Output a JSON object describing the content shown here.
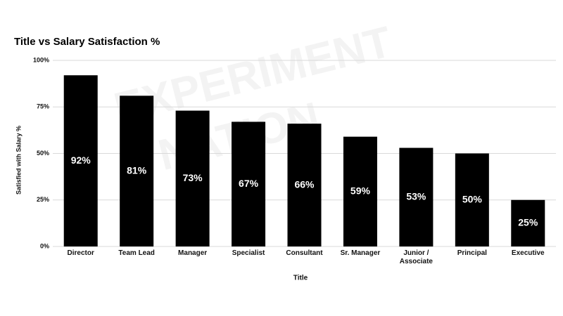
{
  "chart_data": {
    "type": "bar",
    "title": "Title vs Salary Satisfaction %",
    "watermark": [
      "EXPERIMENT",
      "NATION"
    ],
    "x_label": "Title",
    "y_label": "Satisfied with Salary %",
    "categories": [
      "Director",
      "Team Lead",
      "Manager",
      "Specialist",
      "Consultant",
      "Sr. Manager",
      "Junior / Associate",
      "Principal",
      "Executive"
    ],
    "values": [
      92,
      81,
      73,
      67,
      66,
      59,
      53,
      50,
      25
    ],
    "value_labels": [
      "92%",
      "81%",
      "73%",
      "67%",
      "66%",
      "59%",
      "53%",
      "50%",
      "25%"
    ],
    "color": "#000000",
    "ylim": [
      0,
      100
    ],
    "yticks": [
      {
        "value": 0,
        "label": "0%"
      },
      {
        "value": 25,
        "label": "25%"
      },
      {
        "value": 50,
        "label": "50%"
      },
      {
        "value": 75,
        "label": "75%"
      },
      {
        "value": 100,
        "label": "100%"
      }
    ],
    "grid": true
  }
}
